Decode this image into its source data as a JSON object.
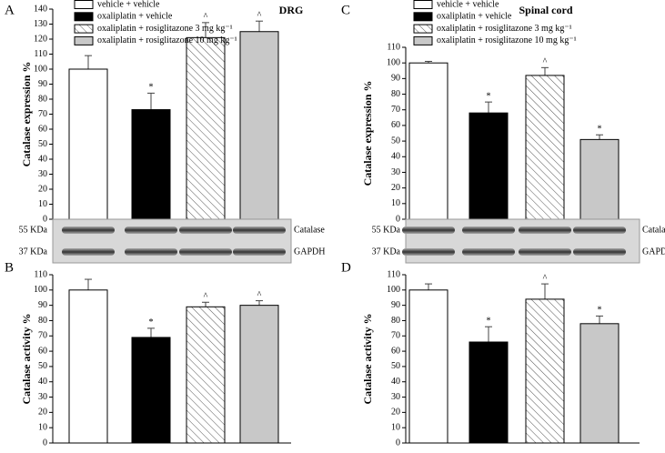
{
  "chart_data": [
    {
      "type": "bar",
      "panel": "A",
      "title": "DRG",
      "ylabel": "Catalase expression %",
      "legend": [
        "vehicle + vehicle",
        "oxaliplatin + vehicle",
        "oxaliplatin + rosiglitazone 3 mg kg⁻¹",
        "oxaliplatin + rosiglitazone 10 mg kg⁻¹"
      ],
      "colors": [
        "#ffffff",
        "#000000",
        "hatch",
        "#c8c8c8"
      ],
      "values": [
        100,
        73,
        121,
        125
      ],
      "errors": [
        9,
        11,
        10,
        7
      ],
      "markers": [
        null,
        "*",
        "^",
        "^"
      ],
      "ylim": [
        0,
        140
      ],
      "yticks": [
        0,
        10,
        20,
        30,
        40,
        50,
        60,
        70,
        80,
        90,
        100,
        110,
        120,
        130,
        140
      ],
      "blot": {
        "bands": [
          {
            "size": "55 KDa",
            "protein": "Catalase"
          },
          {
            "size": "37 KDa",
            "protein": "GAPDH"
          }
        ]
      }
    },
    {
      "type": "bar",
      "panel": "B",
      "ylabel": "Catalase activity %",
      "colors": [
        "#ffffff",
        "#000000",
        "hatch",
        "#c8c8c8"
      ],
      "values": [
        100,
        69,
        89,
        90
      ],
      "errors": [
        7,
        6,
        3,
        3
      ],
      "markers": [
        null,
        "*",
        "^",
        "^"
      ],
      "ylim": [
        0,
        110
      ],
      "yticks": [
        0,
        10,
        20,
        30,
        40,
        50,
        60,
        70,
        80,
        90,
        100,
        110
      ]
    },
    {
      "type": "bar",
      "panel": "C",
      "title": "Spinal cord",
      "ylabel": "Catalase expression %",
      "legend": [
        "vehicle + vehicle",
        "oxaliplatin + vehicle",
        "oxaliplatin + rosiglitazone 3 mg kg⁻¹",
        "oxaliplatin + rosiglitazone 10 mg kg⁻¹"
      ],
      "colors": [
        "#ffffff",
        "#000000",
        "hatch",
        "#c8c8c8"
      ],
      "values": [
        100,
        68,
        92,
        51
      ],
      "errors": [
        1,
        7,
        5,
        3
      ],
      "markers": [
        null,
        "*",
        "^",
        "*"
      ],
      "ylim": [
        0,
        110
      ],
      "yticks": [
        0,
        10,
        20,
        30,
        40,
        50,
        60,
        70,
        80,
        90,
        100,
        110
      ],
      "blot": {
        "bands": [
          {
            "size": "55 KDa",
            "protein": "Catalase"
          },
          {
            "size": "37 KDa",
            "protein": "GAPDH"
          }
        ]
      }
    },
    {
      "type": "bar",
      "panel": "D",
      "ylabel": "Catalase activity %",
      "colors": [
        "#ffffff",
        "#000000",
        "hatch",
        "#c8c8c8"
      ],
      "values": [
        100,
        66,
        94,
        78
      ],
      "errors": [
        4,
        10,
        10,
        5
      ],
      "markers": [
        null,
        "*",
        "^",
        "*"
      ],
      "ylim": [
        0,
        110
      ],
      "yticks": [
        0,
        10,
        20,
        30,
        40,
        50,
        60,
        70,
        80,
        90,
        100,
        110
      ]
    }
  ]
}
